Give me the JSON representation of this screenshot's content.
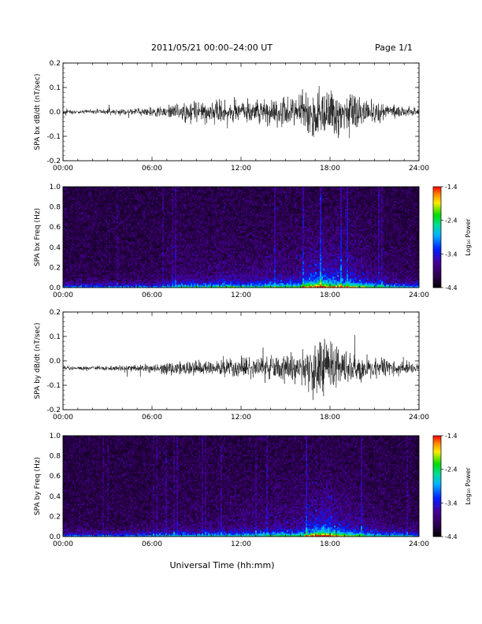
{
  "header": {
    "title": "2011/05/21  00:00–24:00 UT",
    "page": "Page 1/1"
  },
  "xlabel": "Universal Time (hh:mm)",
  "chart_data": [
    {
      "type": "line",
      "ylabel": "SPA bx dB/dt (nT/sec)",
      "xlim": [
        0,
        24
      ],
      "ylim": [
        -0.2,
        0.2
      ],
      "xticks": [
        "00:00",
        "06:00",
        "12:00",
        "18:00",
        "24:00"
      ],
      "yticks": [
        "-0.2",
        "-0.1",
        "0.0",
        "0.1",
        "0.2"
      ],
      "baseline": 0.0,
      "envelope": {
        "x": [
          0,
          2,
          4,
          6,
          7,
          8,
          9,
          10,
          11,
          12,
          13,
          14,
          15,
          16,
          16.5,
          17,
          17.5,
          18,
          18.5,
          19,
          19.5,
          20,
          20.5,
          21,
          22,
          23,
          24
        ],
        "amplitude": [
          0.012,
          0.012,
          0.015,
          0.02,
          0.03,
          0.05,
          0.055,
          0.05,
          0.07,
          0.05,
          0.06,
          0.07,
          0.07,
          0.08,
          0.12,
          0.14,
          0.14,
          0.12,
          0.12,
          0.1,
          0.1,
          0.09,
          0.08,
          0.06,
          0.04,
          0.03,
          0.02
        ]
      }
    },
    {
      "type": "heatmap",
      "ylabel": "SPA bx Freq (Hz)",
      "xlim": [
        0,
        24
      ],
      "ylim": [
        0,
        1.0
      ],
      "xticks": [
        "00:00",
        "06:00",
        "12:00",
        "18:00",
        "24:00"
      ],
      "yticks": [
        "0.0",
        "0.2",
        "0.4",
        "0.6",
        "0.8",
        "1.0"
      ],
      "colorbar": {
        "label": "Log₁₀ Power",
        "range": [
          -4.4,
          -1.4
        ],
        "ticks": [
          "-1.4",
          "-2.4",
          "-3.4",
          "-4.4"
        ],
        "colormap": "rainbow"
      }
    },
    {
      "type": "line",
      "ylabel": "SPA by dB/dt (nT/sec)",
      "xlim": [
        0,
        24
      ],
      "ylim": [
        -0.2,
        0.2
      ],
      "xticks": [
        "00:00",
        "06:00",
        "12:00",
        "18:00",
        "24:00"
      ],
      "yticks": [
        "-0.2",
        "-0.1",
        "0.0",
        "0.1",
        "0.2"
      ],
      "baseline": -0.03,
      "envelope": {
        "x": [
          0,
          2,
          4,
          6,
          7,
          8,
          9,
          10,
          11,
          12,
          13,
          14,
          15,
          16,
          16.5,
          17,
          17.5,
          18,
          18.5,
          19,
          19.5,
          20,
          20.5,
          21,
          22,
          23,
          24
        ],
        "amplitude": [
          0.01,
          0.01,
          0.013,
          0.02,
          0.03,
          0.035,
          0.035,
          0.035,
          0.04,
          0.05,
          0.05,
          0.06,
          0.07,
          0.07,
          0.1,
          0.13,
          0.14,
          0.13,
          0.11,
          0.09,
          0.08,
          0.07,
          0.06,
          0.05,
          0.04,
          0.03,
          0.02
        ]
      }
    },
    {
      "type": "heatmap",
      "ylabel": "SPA by Freq (Hz)",
      "xlim": [
        0,
        24
      ],
      "ylim": [
        0,
        1.0
      ],
      "xticks": [
        "00:00",
        "06:00",
        "12:00",
        "18:00",
        "24:00"
      ],
      "yticks": [
        "0.0",
        "0.2",
        "0.4",
        "0.6",
        "0.8",
        "1.0"
      ],
      "colorbar": {
        "label": "Log₁₀ Power",
        "range": [
          -4.4,
          -1.4
        ],
        "ticks": [
          "-1.4",
          "-2.4",
          "-3.4",
          "-4.4"
        ],
        "colormap": "rainbow"
      }
    }
  ]
}
